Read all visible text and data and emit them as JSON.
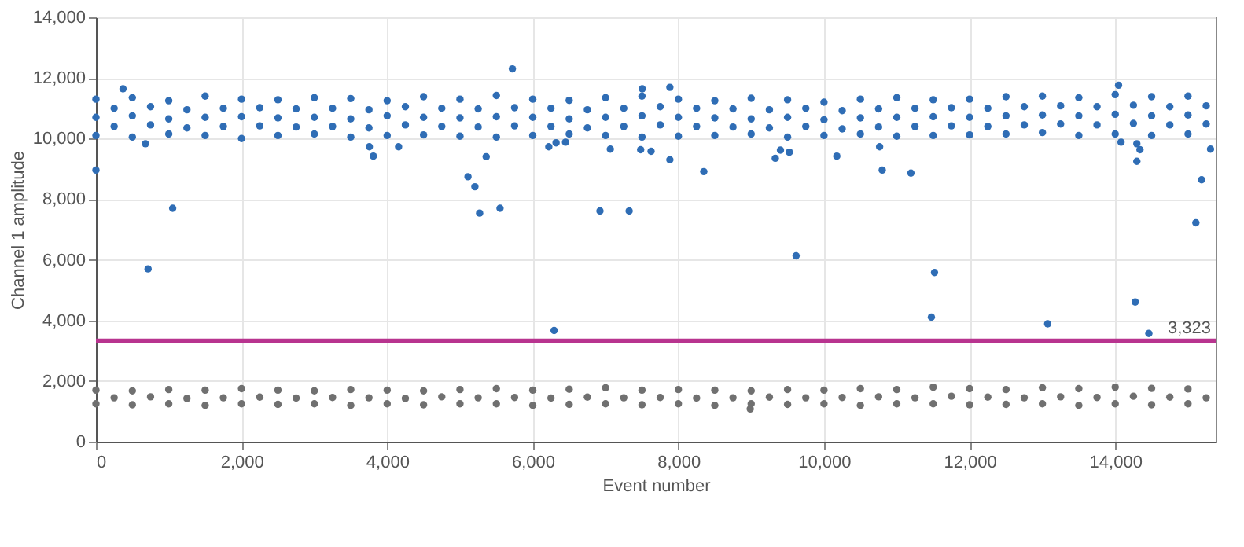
{
  "chart_data": {
    "type": "scatter",
    "xlabel": "Event number",
    "ylabel": "Channel 1 amplitude",
    "xlim": [
      0,
      15380
    ],
    "ylim": [
      0,
      14000
    ],
    "xticks": [
      0,
      {
        "value": 2000,
        "label": "2,000"
      },
      {
        "value": 4000,
        "label": "4,000"
      },
      {
        "value": 6000,
        "label": "6,000"
      },
      {
        "value": 8000,
        "label": "8,000"
      },
      {
        "value": 10000,
        "label": "10,000"
      },
      {
        "value": 12000,
        "label": "12,000"
      },
      {
        "value": 14000,
        "label": "14,000"
      }
    ],
    "yticks": [
      0,
      {
        "value": 2000,
        "label": "2,000"
      },
      {
        "value": 4000,
        "label": "4,000"
      },
      {
        "value": 6000,
        "label": "6,000"
      },
      {
        "value": 8000,
        "label": "8,000"
      },
      {
        "value": 10000,
        "label": "10,000"
      },
      {
        "value": 12000,
        "label": "12,000"
      },
      {
        "value": 14000,
        "label": "14,000"
      }
    ],
    "grid": true,
    "marker": "circle",
    "ref_lines": [
      {
        "axis": "y",
        "value": 3323,
        "label": "3,323",
        "color": "#b8348f"
      }
    ],
    "series": [
      {
        "color": "#2f6db5",
        "x": [
          0,
          500,
          1000,
          1500,
          2000,
          2500,
          3000,
          3500,
          4000,
          4500,
          5000,
          5500,
          6000,
          6500,
          7000,
          7500,
          8000,
          8500,
          9000,
          9500,
          10000,
          10500,
          11000,
          11500,
          12000,
          12500,
          13000,
          13500,
          14000,
          14500,
          15000,
          0,
          500,
          1000,
          1500,
          2000,
          2500,
          3000,
          3500,
          4000,
          4500,
          5000,
          5500,
          6000,
          6500,
          7000,
          7500,
          8000,
          8500,
          9000,
          9500,
          10000,
          10500,
          11000,
          11500,
          12000,
          12500,
          13000,
          13500,
          14000,
          14500,
          15000,
          0,
          500,
          1000,
          1500,
          2000,
          2500,
          3000,
          3500,
          4000,
          4500,
          5000,
          5500,
          6000,
          6500,
          7000,
          7500,
          8000,
          8500,
          9000,
          9500,
          10000,
          10500,
          11000,
          11500,
          12000,
          12500,
          13000,
          13500,
          14000,
          14500,
          15000,
          250,
          750,
          1250,
          1750,
          2250,
          2750,
          3250,
          3750,
          4250,
          4750,
          5250,
          5750,
          6250,
          6750,
          7250,
          7750,
          8250,
          8750,
          9250,
          9750,
          10250,
          10750,
          11250,
          11750,
          12250,
          12750,
          13250,
          13750,
          14250,
          14750,
          15250,
          250,
          750,
          1250,
          1750,
          2250,
          2750,
          3250,
          3750,
          4250,
          4750,
          5250,
          5750,
          6250,
          6750,
          7250,
          7750,
          8250,
          8750,
          9250,
          9750,
          10250,
          10750,
          11250,
          11750,
          12250,
          12750,
          13250,
          13750,
          14250,
          14750,
          15250
        ],
        "values": [
          11300,
          11350,
          11250,
          11400,
          11300,
          11280,
          11350,
          11320,
          11250,
          11380,
          11300,
          11420,
          11300,
          11260,
          11350,
          11400,
          11300,
          11250,
          11330,
          11280,
          11200,
          11300,
          11350,
          11280,
          11300,
          11380,
          11400,
          11350,
          11450,
          11380,
          11400,
          10700,
          10750,
          10650,
          10700,
          10720,
          10680,
          10700,
          10650,
          10750,
          10700,
          10680,
          10720,
          10700,
          10650,
          10700,
          10750,
          10700,
          10680,
          10650,
          10700,
          10620,
          10680,
          10700,
          10720,
          10700,
          10750,
          10780,
          10750,
          10800,
          10750,
          10780,
          10100,
          10050,
          10150,
          10100,
          10000,
          10100,
          10150,
          10050,
          10100,
          10120,
          10080,
          10050,
          10100,
          10150,
          10100,
          10050,
          10080,
          10100,
          10150,
          10050,
          10100,
          10150,
          10080,
          10100,
          10120,
          10150,
          10200,
          10100,
          10150,
          10100,
          10150,
          11000,
          11050,
          10950,
          11000,
          11020,
          10980,
          11000,
          10950,
          11050,
          11000,
          10980,
          11020,
          11000,
          10950,
          11000,
          11050,
          11000,
          10980,
          10950,
          11000,
          10920,
          10980,
          11000,
          11020,
          11000,
          11050,
          11080,
          11050,
          11100,
          11050,
          11080,
          10400,
          10450,
          10350,
          10400,
          10420,
          10380,
          10400,
          10350,
          10450,
          10400,
          10380,
          10420,
          10400,
          10350,
          10400,
          10450,
          10400,
          10380,
          10350,
          10400,
          10320,
          10380,
          10400,
          10420,
          10400,
          10450,
          10480,
          10450,
          10500,
          10450,
          10480
        ]
      },
      {
        "color": "#2f6db5",
        "x": [
          0,
          716,
          1054,
          372,
          680,
          3755,
          3810,
          4157,
          5110,
          5205,
          5270,
          5360,
          5550,
          5720,
          6293,
          6220,
          6320,
          6450,
          6923,
          7065,
          7324,
          7504,
          7482,
          7625,
          7883,
          7883,
          8349,
          9331,
          9402,
          9524,
          9617,
          10176,
          10764,
          10800,
          11194,
          11475,
          11518,
          13072,
          14046,
          14275,
          14297,
          14297,
          14340,
          14462,
          15108,
          15187,
          15309,
          14080
        ],
        "values": [
          8960,
          5700,
          7700,
          11640,
          9830,
          9730,
          9420,
          9730,
          8740,
          8410,
          7540,
          9400,
          7700,
          12300,
          3670,
          9730,
          9860,
          9880,
          7610,
          9650,
          7610,
          11640,
          9630,
          9580,
          11690,
          9300,
          8910,
          9350,
          9620,
          9550,
          6130,
          9420,
          9730,
          8960,
          8860,
          4110,
          5580,
          3890,
          11760,
          4610,
          9250,
          9830,
          9630,
          3570,
          7220,
          8640,
          9650,
          9880
        ]
      },
      {
        "color": "#707070",
        "x": [
          0,
          500,
          1000,
          1500,
          2000,
          2500,
          3000,
          3500,
          4000,
          4500,
          5000,
          5500,
          6000,
          6500,
          7000,
          7500,
          8000,
          8500,
          9000,
          9500,
          10000,
          10500,
          11000,
          11500,
          12000,
          12500,
          13000,
          13500,
          14000,
          14500,
          15000,
          0,
          500,
          1000,
          1500,
          2000,
          2500,
          3000,
          3500,
          4000,
          4500,
          5000,
          5500,
          6000,
          6500,
          7000,
          7500,
          8000,
          8500,
          9000,
          9500,
          10000,
          10500,
          11000,
          11500,
          12000,
          12500,
          13000,
          13500,
          14000,
          14500,
          15000,
          250,
          750,
          1250,
          1750,
          2250,
          2750,
          3250,
          3750,
          4250,
          4750,
          5250,
          5750,
          6250,
          6750,
          7250,
          7750,
          8250,
          8750,
          9250,
          9750,
          10250,
          10750,
          11250,
          11750,
          12250,
          12750,
          13250,
          13750,
          14250,
          14750,
          15250,
          8987
        ],
        "values": [
          1700,
          1680,
          1720,
          1700,
          1750,
          1700,
          1680,
          1720,
          1700,
          1680,
          1720,
          1750,
          1700,
          1730,
          1780,
          1700,
          1720,
          1700,
          1680,
          1720,
          1700,
          1750,
          1720,
          1800,
          1750,
          1720,
          1780,
          1750,
          1800,
          1760,
          1740,
          1250,
          1220,
          1250,
          1200,
          1250,
          1230,
          1250,
          1200,
          1250,
          1220,
          1250,
          1250,
          1200,
          1230,
          1250,
          1220,
          1250,
          1200,
          1250,
          1230,
          1250,
          1200,
          1250,
          1250,
          1220,
          1230,
          1250,
          1200,
          1250,
          1220,
          1250,
          1450,
          1480,
          1430,
          1450,
          1470,
          1440,
          1460,
          1450,
          1430,
          1480,
          1450,
          1460,
          1440,
          1470,
          1450,
          1460,
          1440,
          1450,
          1470,
          1450,
          1460,
          1480,
          1450,
          1500,
          1470,
          1450,
          1480,
          1460,
          1500,
          1470,
          1450,
          1080
        ]
      }
    ]
  }
}
